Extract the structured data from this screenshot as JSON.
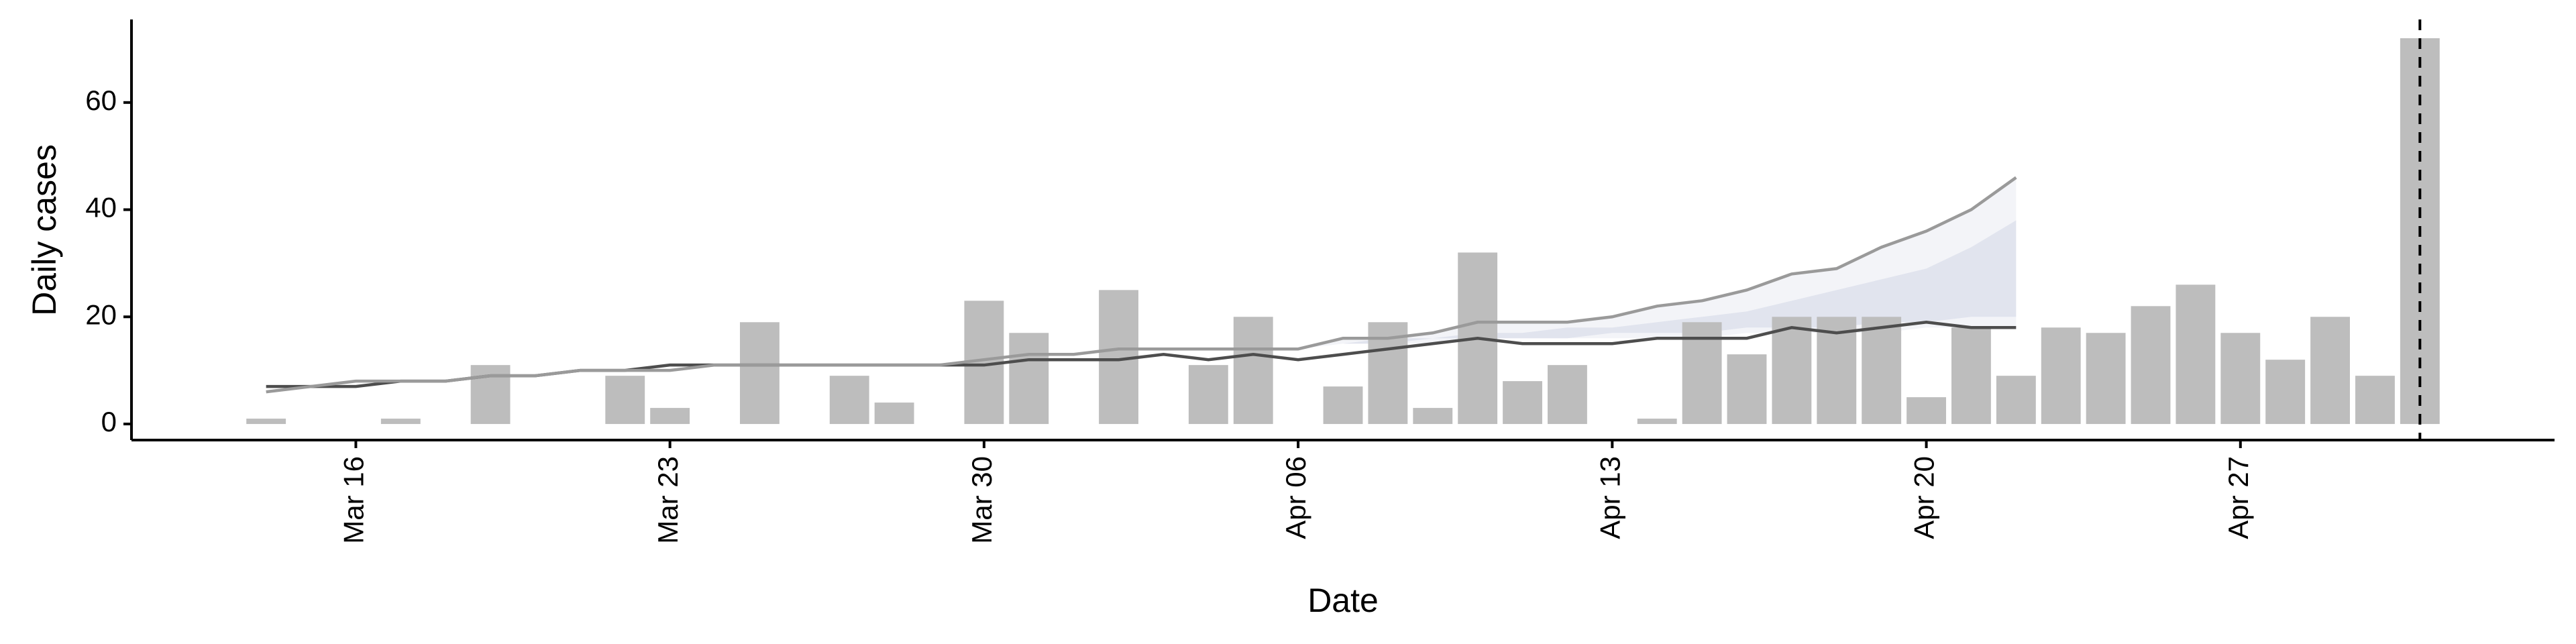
{
  "chart_data": {
    "type": "bar",
    "x_label": "Date",
    "y_label": "Daily cases",
    "x": [
      "Mar 14",
      "Mar 15",
      "Mar 16",
      "Mar 17",
      "Mar 18",
      "Mar 19",
      "Mar 20",
      "Mar 21",
      "Mar 22",
      "Mar 23",
      "Mar 24",
      "Mar 25",
      "Mar 26",
      "Mar 27",
      "Mar 28",
      "Mar 29",
      "Mar 30",
      "Mar 31",
      "Apr 01",
      "Apr 02",
      "Apr 03",
      "Apr 04",
      "Apr 05",
      "Apr 06",
      "Apr 07",
      "Apr 08",
      "Apr 09",
      "Apr 10",
      "Apr 11",
      "Apr 12",
      "Apr 13",
      "Apr 14",
      "Apr 15",
      "Apr 16",
      "Apr 17",
      "Apr 18",
      "Apr 19",
      "Apr 20",
      "Apr 21",
      "Apr 22",
      "Apr 23",
      "Apr 24",
      "Apr 25",
      "Apr 26",
      "Apr 27",
      "Apr 28",
      "Apr 29",
      "Apr 30",
      "May 01"
    ],
    "bars": {
      "color": "#bdbdbd",
      "values": [
        1,
        0,
        0,
        1,
        0,
        11,
        0,
        0,
        9,
        3,
        0,
        19,
        0,
        9,
        4,
        0,
        23,
        17,
        0,
        25,
        0,
        11,
        20,
        0,
        7,
        19,
        3,
        32,
        8,
        11,
        0,
        1,
        19,
        13,
        20,
        20,
        20,
        5,
        18,
        9,
        18,
        17,
        22,
        26,
        17,
        12,
        20,
        9,
        72
      ]
    },
    "bands": [
      {
        "color": "#f3f4f8",
        "lower": [
          null,
          null,
          null,
          null,
          null,
          null,
          null,
          null,
          null,
          null,
          null,
          null,
          null,
          null,
          null,
          null,
          null,
          null,
          null,
          null,
          null,
          null,
          null,
          14,
          15,
          15,
          15,
          16,
          16,
          16,
          16,
          16,
          16,
          17,
          17,
          17,
          17,
          18,
          18,
          18,
          null,
          null,
          null,
          null,
          null,
          null,
          null,
          null,
          null
        ],
        "upper": [
          null,
          null,
          null,
          null,
          null,
          null,
          null,
          null,
          null,
          null,
          null,
          null,
          null,
          null,
          null,
          null,
          null,
          null,
          null,
          null,
          null,
          null,
          null,
          14,
          16,
          16,
          17,
          19,
          19,
          19,
          20,
          22,
          23,
          25,
          28,
          29,
          33,
          36,
          40,
          46,
          null,
          null,
          null,
          null,
          null,
          null,
          null,
          null,
          null
        ]
      },
      {
        "color": "#e1e4ee",
        "lower": [
          null,
          null,
          null,
          null,
          null,
          null,
          null,
          null,
          null,
          null,
          null,
          null,
          null,
          null,
          null,
          null,
          null,
          null,
          null,
          null,
          null,
          null,
          null,
          14,
          15,
          15,
          16,
          16,
          16,
          16,
          17,
          17,
          17,
          18,
          18,
          18,
          19,
          19,
          20,
          20,
          null,
          null,
          null,
          null,
          null,
          null,
          null,
          null,
          null
        ],
        "upper": [
          null,
          null,
          null,
          null,
          null,
          null,
          null,
          null,
          null,
          null,
          null,
          null,
          null,
          null,
          null,
          null,
          null,
          null,
          null,
          null,
          null,
          null,
          null,
          14,
          15,
          16,
          16,
          17,
          17,
          18,
          18,
          19,
          20,
          21,
          23,
          25,
          27,
          29,
          33,
          38,
          null,
          null,
          null,
          null,
          null,
          null,
          null,
          null,
          null
        ]
      }
    ],
    "lines": [
      {
        "color": "#4d4d4d",
        "values": [
          7,
          7,
          7,
          8,
          8,
          9,
          9,
          10,
          10,
          11,
          11,
          11,
          11,
          11,
          11,
          11,
          11,
          12,
          12,
          12,
          13,
          12,
          13,
          12,
          13,
          14,
          15,
          16,
          15,
          15,
          15,
          16,
          16,
          16,
          18,
          17,
          18,
          19,
          18,
          18,
          null,
          null,
          null,
          null,
          null,
          null,
          null,
          null,
          null
        ]
      },
      {
        "color": "#9a9a9a",
        "values": [
          6,
          7,
          8,
          8,
          8,
          9,
          9,
          10,
          10,
          10,
          11,
          11,
          11,
          11,
          11,
          11,
          12,
          13,
          13,
          14,
          14,
          14,
          14,
          14,
          16,
          16,
          17,
          19,
          19,
          19,
          20,
          22,
          23,
          25,
          28,
          29,
          33,
          36,
          40,
          46,
          null,
          null,
          null,
          null,
          null,
          null,
          null,
          null,
          null
        ]
      }
    ],
    "vline": "May 01",
    "xticks": [
      "Mar 16",
      "Mar 23",
      "Mar 30",
      "Apr 06",
      "Apr 13",
      "Apr 20",
      "Apr 27"
    ],
    "ylim": [
      -3,
      75.5
    ],
    "yticks": [
      0,
      20,
      40,
      60
    ]
  }
}
